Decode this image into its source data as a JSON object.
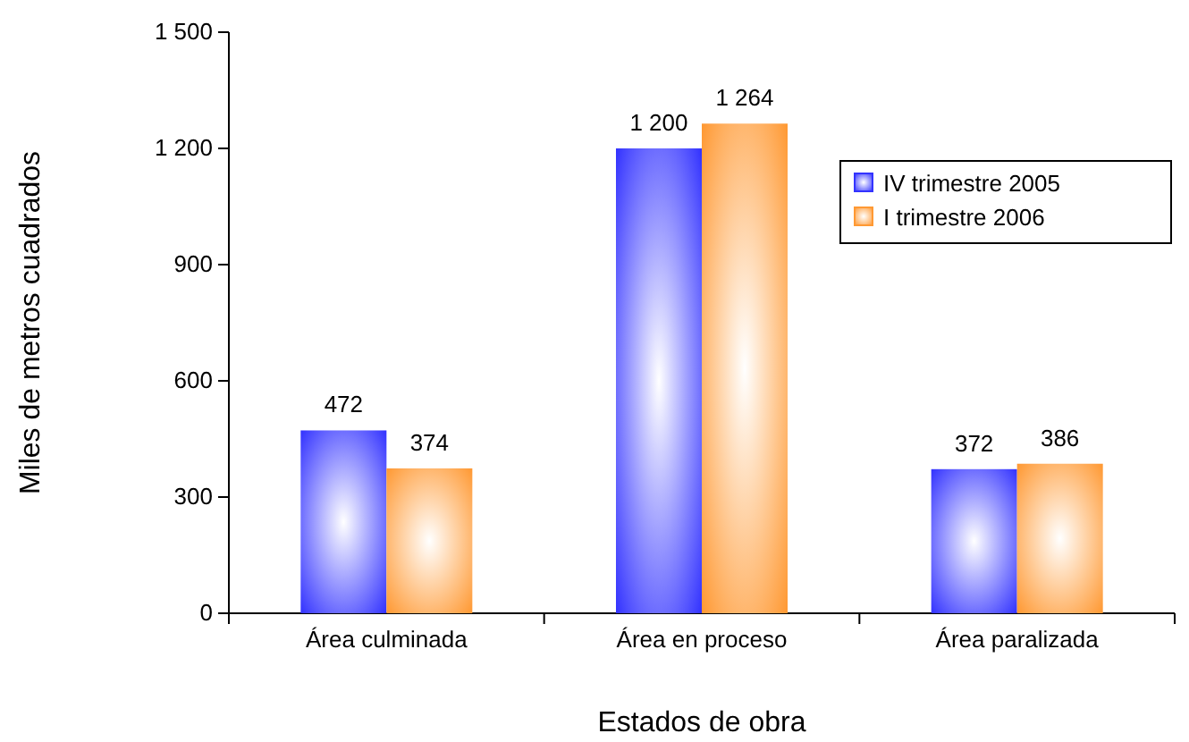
{
  "chart_data": {
    "type": "bar",
    "xlabel": "Estados de obra",
    "ylabel": "Miles de metros cuadrados",
    "categories": [
      "Área culminada",
      "Área en proceso",
      "Área paralizada"
    ],
    "series": [
      {
        "name": "IV trimestre 2005",
        "color": "#3333ff",
        "values": [
          472,
          1200,
          372
        ],
        "value_labels": [
          "472",
          "1 200",
          "372"
        ]
      },
      {
        "name": "I trimestre 2006",
        "color": "#ff9933",
        "values": [
          374,
          1264,
          386
        ],
        "value_labels": [
          "374",
          "1 264",
          "386"
        ]
      }
    ],
    "ylim": [
      0,
      1500
    ],
    "yticks": [
      0,
      300,
      600,
      900,
      {
        "value": 1200,
        "label": "1 200"
      },
      {
        "value": 1500,
        "label": "1 500"
      }
    ],
    "grid": false,
    "legend": "right"
  }
}
